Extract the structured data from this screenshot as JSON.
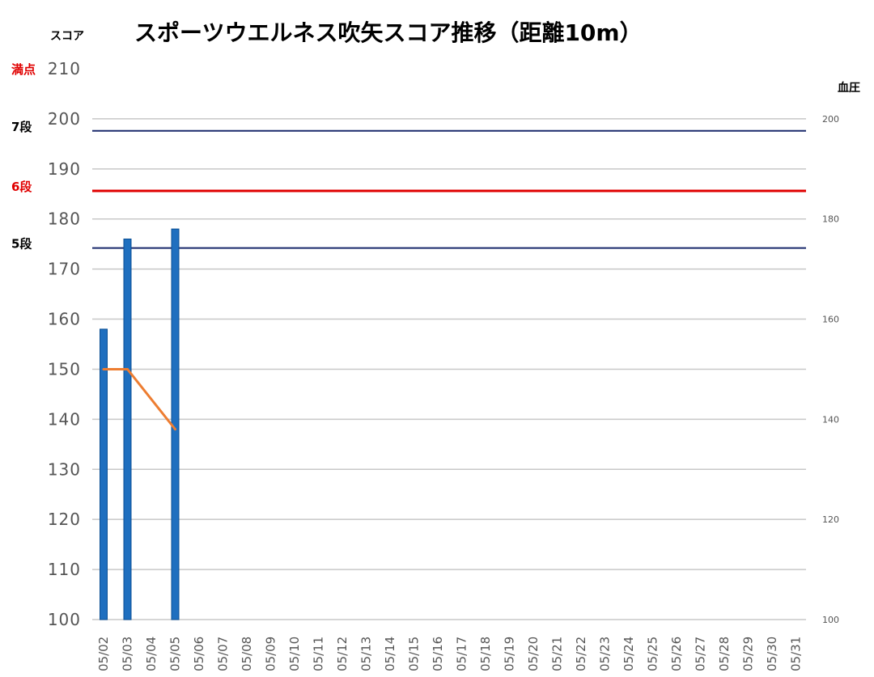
{
  "chart_data": {
    "type": "bar",
    "title": "スポーツウエルネス吹矢スコア推移（距離10m）",
    "ylabel": "スコア",
    "y2label": "血圧",
    "ylim": [
      100,
      210
    ],
    "y_ticks": [
      "100",
      "110",
      "120",
      "130",
      "140",
      "150",
      "160",
      "170",
      "180",
      "190",
      "200",
      "210"
    ],
    "y2lim": [
      100,
      210
    ],
    "y2_ticks": [
      "100",
      "120",
      "140",
      "160",
      "180",
      "200"
    ],
    "categories": [
      "05/02",
      "05/03",
      "05/04",
      "05/05",
      "05/06",
      "05/07",
      "05/08",
      "05/09",
      "05/10",
      "05/11",
      "05/12",
      "05/13",
      "05/14",
      "05/15",
      "05/16",
      "05/17",
      "05/18",
      "05/19",
      "05/20",
      "05/21",
      "05/22",
      "05/23",
      "05/24",
      "05/25",
      "05/26",
      "05/27",
      "05/28",
      "05/29",
      "05/30",
      "05/31"
    ],
    "series": [
      {
        "type": "bar",
        "axis": "left",
        "values": [
          158,
          176,
          null,
          178,
          null,
          null,
          null,
          null,
          null,
          null,
          null,
          null,
          null,
          null,
          null,
          null,
          null,
          null,
          null,
          null,
          null,
          null,
          null,
          null,
          null,
          null,
          null,
          null,
          null,
          null
        ]
      },
      {
        "type": "line",
        "axis": "right",
        "values": [
          150,
          150,
          null,
          138,
          null,
          null,
          null,
          null,
          null,
          null,
          null,
          null,
          null,
          null,
          null,
          null,
          null,
          null,
          null,
          null,
          null,
          null,
          null,
          null,
          null,
          null,
          null,
          null,
          null,
          null
        ]
      }
    ],
    "reference_lines": [
      {
        "label": "満点",
        "value": 210,
        "show_line": false
      },
      {
        "label": "7段",
        "value": 197.6,
        "show_line": true
      },
      {
        "label": "6段",
        "value": 185.6,
        "show_line": true
      },
      {
        "label": "5段",
        "value": 174.2,
        "show_line": true
      }
    ],
    "grid": true
  },
  "colors": {
    "bar": "#1f6fbf",
    "bar_edge": "#0b4f94",
    "line": "#ed7d31",
    "grid": "#c8c8c8",
    "dan_line": "#1a2a6c",
    "dan6_line": "#e00000",
    "label_red": "#e00000",
    "label_black": "#000000"
  }
}
